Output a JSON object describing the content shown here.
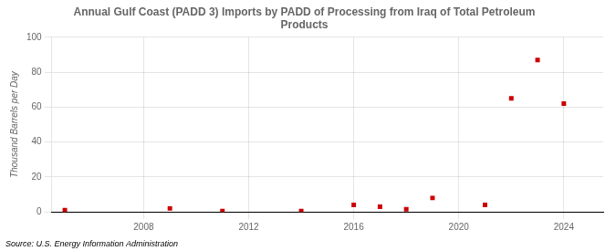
{
  "chart_data": {
    "type": "scatter",
    "title": "Annual Gulf Coast (PADD 3) Imports by PADD of Processing from Iraq of Total Petroleum\nProducts",
    "ylabel": "Thousand Barrels per Day",
    "source": "Source: U.S. Energy Information Administration",
    "x": [
      2005,
      2009,
      2011,
      2014,
      2016,
      2017,
      2018,
      2019,
      2021,
      2022,
      2023,
      2024
    ],
    "values": [
      1,
      2,
      0.5,
      0.5,
      4,
      3,
      1.5,
      8,
      4,
      65,
      87,
      62
    ],
    "color": "#cc0000",
    "marker": "square",
    "xlim": [
      2004.5,
      2025.5
    ],
    "xticks": [
      2008,
      2012,
      2016,
      2020,
      2024
    ],
    "ylim": [
      0,
      100
    ],
    "yticks": [
      0,
      20,
      40,
      60,
      80,
      100
    ],
    "grid": true
  }
}
